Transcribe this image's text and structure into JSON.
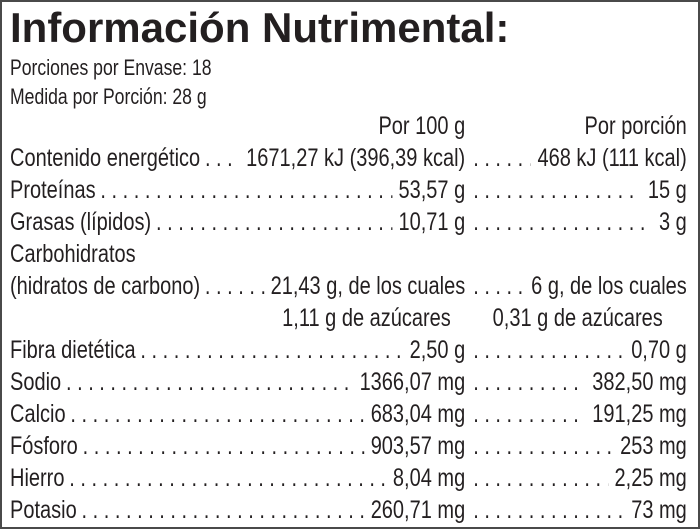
{
  "title": "Información Nutrimental:",
  "meta": [
    "Porciones por Envase: 18",
    "Medida por Porción: 28 g"
  ],
  "columns": {
    "per100": "Por 100 g",
    "portion": "Por porción"
  },
  "rows": [
    {
      "label": "Contenido energético",
      "per100": "1671,27 kJ (396,39 kcal)",
      "portion": "468 kJ (111 kcal)",
      "type": "full"
    },
    {
      "label": "Proteínas",
      "per100": "53,57 g",
      "portion": "15 g",
      "type": "full"
    },
    {
      "label": "Grasas (lípidos)",
      "per100": "10,71 g",
      "portion": "3 g",
      "type": "full"
    },
    {
      "label": "Carbohidratos",
      "per100": "",
      "portion": "",
      "type": "label-only"
    },
    {
      "label": "(hidratos de carbono)",
      "per100": "21,43 g, de los cuales",
      "portion": "6 g, de los cuales",
      "type": "full"
    },
    {
      "label": "",
      "per100": "1,11 g de azúcares",
      "portion": "0,31 g de azúcares",
      "type": "values-only"
    },
    {
      "label": "Fibra dietética",
      "per100": "2,50 g",
      "portion": "0,70 g",
      "type": "full"
    },
    {
      "label": "Sodio",
      "per100": "1366,07 mg",
      "portion": "382,50 mg",
      "type": "full"
    },
    {
      "label": "Calcio",
      "per100": "683,04 mg",
      "portion": "191,25 mg",
      "type": "full"
    },
    {
      "label": "Fósforo",
      "per100": "903,57 mg",
      "portion": "253 mg",
      "type": "full"
    },
    {
      "label": "Hierro",
      "per100": "8,04 mg",
      "portion": "2,25 mg",
      "type": "full"
    },
    {
      "label": "Potasio",
      "per100": "260,71 mg",
      "portion": "73 mg",
      "type": "full"
    }
  ],
  "colors": {
    "text": "#231f20",
    "border": "#4a4a4a",
    "background": "#ffffff"
  }
}
